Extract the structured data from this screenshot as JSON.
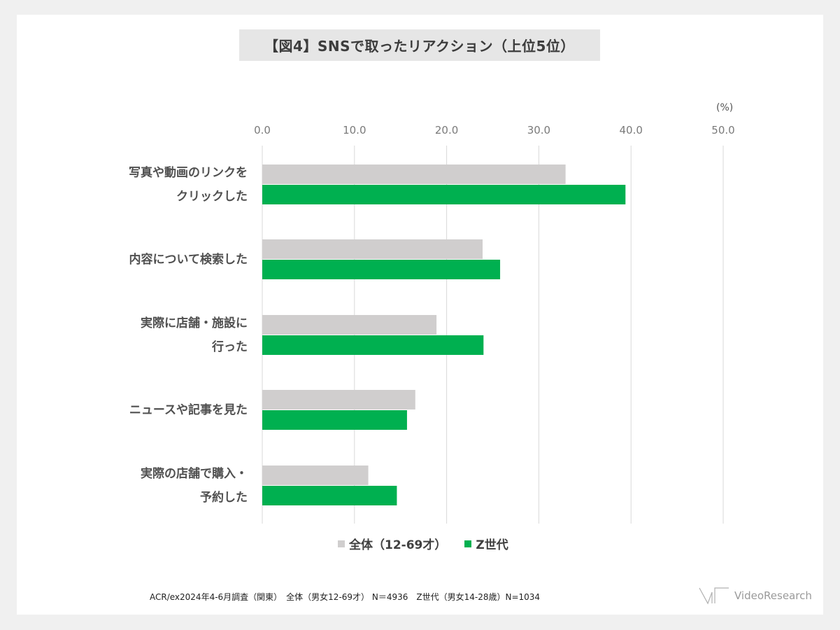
{
  "title": "【図4】SNSで取ったリアクション（上位5位）",
  "unit": "(%)",
  "legend": {
    "item1": "全体（12-69才）",
    "item2": "Z世代"
  },
  "footnote": "ACR/ex2024年4-6月調査（関東）　全体（男女12-69才） N＝4936　Z世代（男女14-28歳）N=1034",
  "logo": {
    "text": "VideoResearch",
    "icon": "vr-logo-icon"
  },
  "colors": {
    "all": "#d0cece",
    "genz": "#00b050",
    "grid": "#d9d9d9",
    "title_bg": "#e6e6e6"
  },
  "chart_data": {
    "type": "bar",
    "orientation": "horizontal",
    "title": "【図4】SNSで取ったリアクション（上位5位）",
    "unit": "(%)",
    "categories": [
      "写真や動画のリンクを\nクリックした",
      "内容について検索した",
      "実際に店舗・施設に\n行った",
      "ニュースや記事を見た",
      "実際の店舗で購入・\n予約した"
    ],
    "series": [
      {
        "name": "全体（12-69才）",
        "values": [
          32.9,
          23.9,
          18.9,
          16.6,
          11.5
        ]
      },
      {
        "name": "Z世代",
        "values": [
          39.4,
          25.8,
          24.0,
          15.7,
          14.6
        ]
      }
    ],
    "xlim": [
      0,
      50
    ],
    "xticks": [
      "0.0",
      "10.0",
      "20.0",
      "30.0",
      "40.0",
      "50.0"
    ],
    "grid": true,
    "legend_position": "bottom"
  }
}
